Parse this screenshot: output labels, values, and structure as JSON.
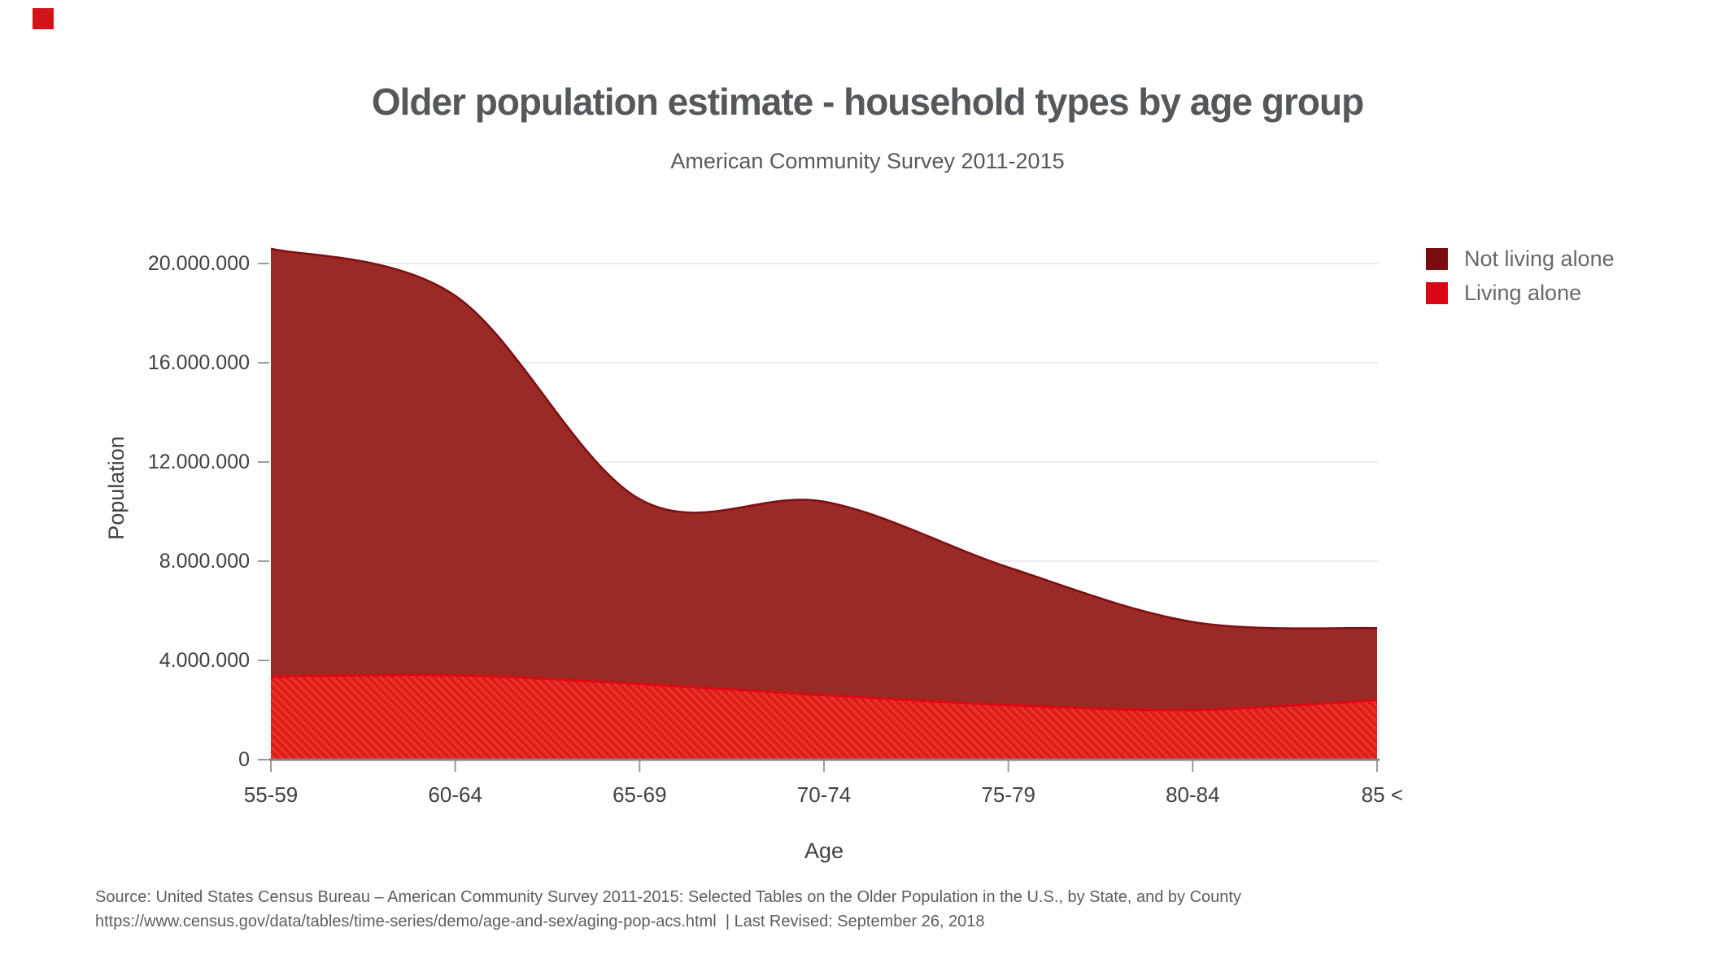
{
  "badge": {
    "color": "#d3131a"
  },
  "header": {
    "title": "Older population estimate - household types by age group",
    "subtitle": "American Community Survey 2011-2015"
  },
  "legend": {
    "items": [
      {
        "label": "Not living alone",
        "color": "#7a0c10"
      },
      {
        "label": "Living alone",
        "color": "#d80713"
      }
    ]
  },
  "chart_data": {
    "type": "area",
    "stacked": true,
    "line_shape": "spline",
    "title": "Older population estimate - household types by age group",
    "subtitle": "American Community Survey 2011-2015",
    "xlabel": "Age",
    "ylabel": "Population",
    "categories": [
      "55-59",
      "60-64",
      "65-69",
      "70-74",
      "75-79",
      "80-84",
      "85 <"
    ],
    "series": [
      {
        "name": "Living alone",
        "values": [
          3350000,
          3400000,
          3050000,
          2600000,
          2200000,
          2000000,
          2400000
        ],
        "fill_color": "#ee3128",
        "hatch_color": "#d61d19",
        "line_color": "#e30412",
        "pattern": "diagonal-hatch"
      },
      {
        "name": "Not living alone",
        "values": [
          17250000,
          15300000,
          7450000,
          7800000,
          5550000,
          3550000,
          2900000
        ],
        "fill_color": "#9a2a26",
        "line_color": "#7c1115",
        "pattern": "solid"
      }
    ],
    "stack_totals": [
      20600000,
      18700000,
      10500000,
      10400000,
      7750000,
      5550000,
      5300000
    ],
    "ylim": [
      0,
      20000000
    ],
    "ytick_values": [
      0,
      4000000,
      8000000,
      12000000,
      16000000,
      20000000
    ],
    "ytick_labels": [
      "0",
      "4.000.000",
      "8.000.000",
      "12.000.000",
      "16.000.000",
      "20.000.000"
    ],
    "grid": true,
    "gridline_color": "#ededed",
    "axis_line_color": "#838383",
    "tick_color": "#9a9a9a",
    "tick_label_color": "#3e4245",
    "axis_title_color": "#3e4245",
    "legend_position": "right"
  },
  "source": {
    "line1": "Source: United States Census Bureau – American Community Survey 2011-2015: Selected Tables on the Older Population in the U.S., by State, and by County",
    "line2": "https://www.census.gov/data/tables/time-series/demo/age-and-sex/aging-pop-acs.html  | Last Revised: September 26, 2018"
  }
}
